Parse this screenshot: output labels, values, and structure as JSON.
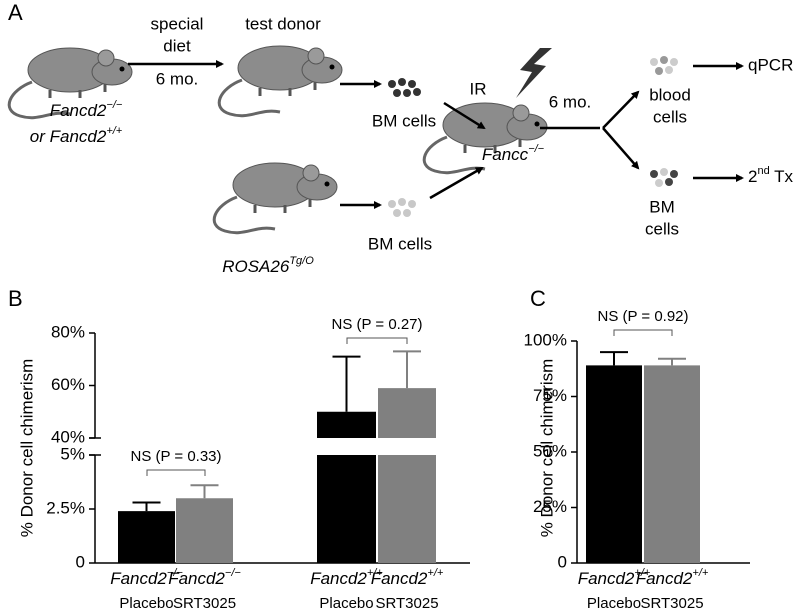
{
  "panel_a": {
    "letter": "A",
    "labels": {
      "diet_1": "special",
      "diet_2": "diet",
      "diet_time": "6 mo.",
      "test_donor": "test donor",
      "donor_genotype_1": {
        "text": "Fancd2",
        "sup": "−/−"
      },
      "donor_genotype_2": {
        "text": "or Fancd2",
        "sup": "+/+"
      },
      "bm_cells_top": "BM cells",
      "bm_cells_bottom": "BM cells",
      "rosa": {
        "text": "ROSA26",
        "sup": "Tg/O"
      },
      "ir": "IR",
      "recipient": {
        "text": "Fancc",
        "sup": "−/−"
      },
      "wait": "6 mo.",
      "blood_1": "blood",
      "blood_2": "cells",
      "qpcr": "qPCR",
      "bm_1": "BM",
      "bm_2": "cells",
      "tx": {
        "text": "2",
        "sup": "nd",
        "rest": " Tx"
      }
    }
  },
  "chart_data": [
    {
      "type": "bar",
      "panel": "B",
      "ylabel": "% Donor cell chimerism",
      "categories": [
        {
          "text": "Fancd2",
          "sup": "−/−"
        },
        {
          "text": "Fancd2",
          "sup": "+/+"
        }
      ],
      "series": [
        {
          "name": "Placebo",
          "color": "#000000",
          "values": [
            2.4,
            50
          ],
          "errors": [
            0.4,
            21
          ]
        },
        {
          "name": "SRT3025",
          "color": "#808080",
          "values": [
            3.0,
            59
          ],
          "errors": [
            0.6,
            14
          ]
        }
      ],
      "segments": [
        {
          "ylim": [
            0,
            5
          ],
          "yticks": [
            0,
            {
              "value": 2.5,
              "label": "2.5%"
            },
            {
              "value": 5,
              "label": "5%"
            }
          ]
        },
        {
          "ylim": [
            40,
            80
          ],
          "yticks": [
            {
              "value": 40,
              "label": "40%"
            },
            {
              "value": 60,
              "label": "60%"
            },
            {
              "value": 80,
              "label": "80%"
            }
          ]
        }
      ],
      "annotations": [
        "NS (P = 0.33)",
        "NS (P = 0.27)"
      ]
    },
    {
      "type": "bar",
      "panel": "C",
      "ylabel": "% Donor cell chimerism",
      "categories": [
        {
          "text": "Fancd2",
          "sup": "+/+"
        }
      ],
      "series": [
        {
          "name": "Placebo",
          "color": "#000000",
          "values": [
            89
          ],
          "errors": [
            6
          ]
        },
        {
          "name": "SRT3025",
          "color": "#808080",
          "values": [
            89
          ],
          "errors": [
            3
          ]
        }
      ],
      "segments": [
        {
          "ylim": [
            0,
            100
          ],
          "yticks": [
            0,
            {
              "value": 25,
              "label": "25%"
            },
            {
              "value": 50,
              "label": "50%"
            },
            {
              "value": 75,
              "label": "75%"
            },
            {
              "value": 100,
              "label": "100%"
            }
          ]
        }
      ],
      "annotations": [
        "NS (P = 0.92)"
      ]
    }
  ]
}
